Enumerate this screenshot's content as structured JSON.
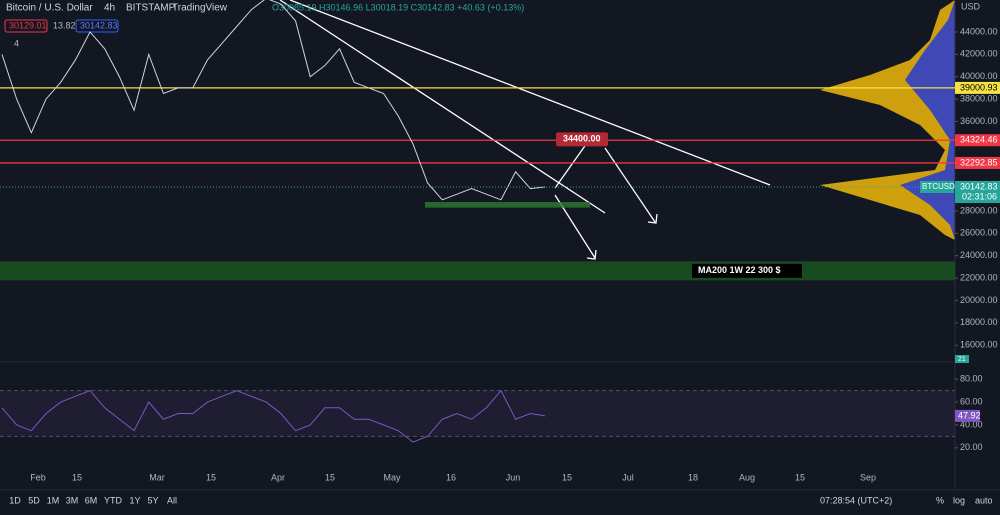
{
  "header": {
    "symbol": "Bitcoin / U.S. Dollar",
    "interval": "4h",
    "exchange": "BITSTAMP",
    "source": "TradingView",
    "ohlc": "O30085.19 H30146.96 L30018.19 C30142.83 +40.63 (+0.13%)",
    "bid": "30129.01",
    "spread": "13.82",
    "ask": "30142.83",
    "indicators": "4"
  },
  "price_axis": {
    "unit": "USD",
    "ylim": [
      14500,
      46500
    ],
    "ticks": [
      {
        "value": 44000,
        "label": "44000.00"
      },
      {
        "value": 42000,
        "label": "42000.00"
      },
      {
        "value": 40000,
        "label": "40000.00"
      },
      {
        "value": 38000,
        "label": "38000.00"
      },
      {
        "value": 36000,
        "label": "36000.00"
      },
      {
        "value": 28000,
        "label": "28000.00"
      },
      {
        "value": 26000,
        "label": "26000.00"
      },
      {
        "value": 24000,
        "label": "24000.00"
      },
      {
        "value": 22000,
        "label": "22000.00"
      },
      {
        "value": 20000,
        "label": "20000.00"
      },
      {
        "value": 18000,
        "label": "18000.00"
      },
      {
        "value": 16000,
        "label": "16000.00"
      }
    ]
  },
  "levels": [
    {
      "value": 39000.93,
      "color": "#f5e342"
    },
    {
      "value": 34324.46,
      "color": "#f23645"
    },
    {
      "value": 32292.85,
      "color": "#f23645"
    }
  ],
  "zones": [
    {
      "from": 21800,
      "to": 23500,
      "label": "MA200 1W 22 300 $",
      "color": "#1b5e20"
    },
    {
      "from": 28300,
      "to": 28800,
      "color": "#2e7d32"
    }
  ],
  "price": {
    "color": "#d1d4dc",
    "values": [
      42000,
      38000,
      35000,
      38000,
      39500,
      41500,
      44000,
      42500,
      40000,
      37000,
      42000,
      38500,
      39000,
      39000,
      41500,
      43000,
      44500,
      46000,
      47000,
      46500,
      45000,
      40000,
      41000,
      42500,
      39500,
      39000,
      38500,
      36500,
      34000,
      30500,
      29000,
      29500,
      30000,
      29500,
      29000,
      31500,
      30000,
      30142.83
    ]
  },
  "annotation": {
    "value": 34400,
    "label": "34400.00"
  },
  "current": {
    "value": 30142.83,
    "symbol": "BTCUSD",
    "label": "30142.83",
    "countdown": "02:31:06"
  },
  "volume_label": "21",
  "rsi": {
    "ylim": [
      5,
      95
    ],
    "band": [
      30,
      70
    ],
    "color": "#7e57c2",
    "ticks": [
      {
        "value": 80,
        "label": "80.00"
      },
      {
        "value": 60,
        "label": "60.00"
      },
      {
        "value": 40,
        "label": "40.00"
      },
      {
        "value": 20,
        "label": "20.00"
      }
    ],
    "values": [
      55,
      40,
      35,
      50,
      60,
      65,
      70,
      55,
      45,
      35,
      60,
      45,
      50,
      50,
      60,
      65,
      70,
      65,
      60,
      50,
      35,
      40,
      55,
      55,
      45,
      45,
      40,
      35,
      25,
      30,
      45,
      50,
      45,
      55,
      70,
      45,
      50,
      47.92
    ],
    "last": {
      "value": 47.92,
      "label": "47.92"
    }
  },
  "time_axis": [
    "Feb",
    "15",
    "Mar",
    "15",
    "Apr",
    "15",
    "May",
    "16",
    "Jun",
    "15",
    "Jul",
    "18",
    "Aug",
    "15",
    "Sep"
  ],
  "toolbar": {
    "ranges": [
      "1D",
      "5D",
      "1M",
      "3M",
      "6M",
      "YTD",
      "1Y",
      "5Y",
      "All"
    ],
    "clock": "07:28:54 (UTC+2)",
    "percent": "%",
    "log": "log",
    "auto": "auto"
  }
}
